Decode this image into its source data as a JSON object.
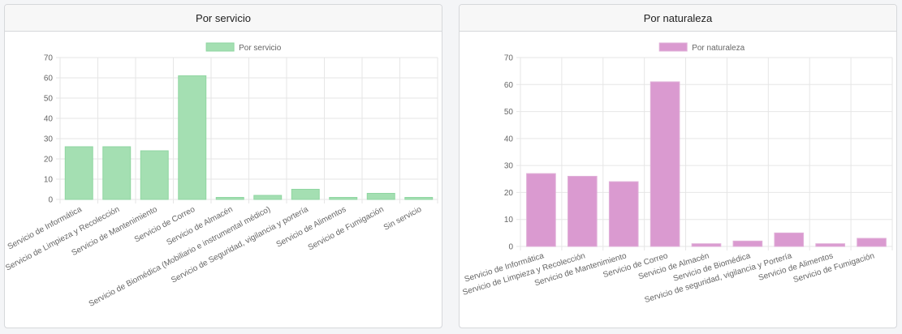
{
  "chart_data": [
    {
      "type": "bar",
      "title": "Por servicio",
      "legend": "Por servicio",
      "legend_position": "top",
      "color": "#a4dfb2",
      "border": "#8fd6a1",
      "ylim": [
        0,
        70
      ],
      "yticks": [
        0,
        10,
        20,
        30,
        40,
        50,
        60,
        70
      ],
      "grid": true,
      "categories": [
        "Servicio de Informática",
        "Servicio de Limpieza y Recolección",
        "Servicio de Mantenimiento",
        "Servicio de Correo",
        "Servicio de Almacén",
        "Servicio de Biomédica (Mobiliario e instrumental médico)",
        "Servicio de Seguridad, vigilancia y portería",
        "Servicio de Alimentos",
        "Servicio de Fumigación",
        "Sin servicio"
      ],
      "values": [
        26,
        26,
        24,
        61,
        1,
        2,
        5,
        1,
        3,
        1
      ]
    },
    {
      "type": "bar",
      "title": "Por naturaleza",
      "legend": "Por naturaleza",
      "legend_position": "top",
      "color": "#da9ad0",
      "border": "#e0b0d8",
      "ylim": [
        0,
        70
      ],
      "yticks": [
        0,
        10,
        20,
        30,
        40,
        50,
        60,
        70
      ],
      "grid": true,
      "categories": [
        "Servicio de Informática",
        "Servicio de Limpieza y Recolección",
        "Servicio de Mantenimiento",
        "Servicio de Correo",
        "Servicio de Almacén",
        "Servicio de Biomédica",
        "Servicio de seguridad, vigilancia y Portería",
        "Servicio de Alimentos",
        "Servicio de Fumigación"
      ],
      "values": [
        27,
        26,
        24,
        61,
        1,
        2,
        5,
        1,
        3
      ]
    }
  ]
}
